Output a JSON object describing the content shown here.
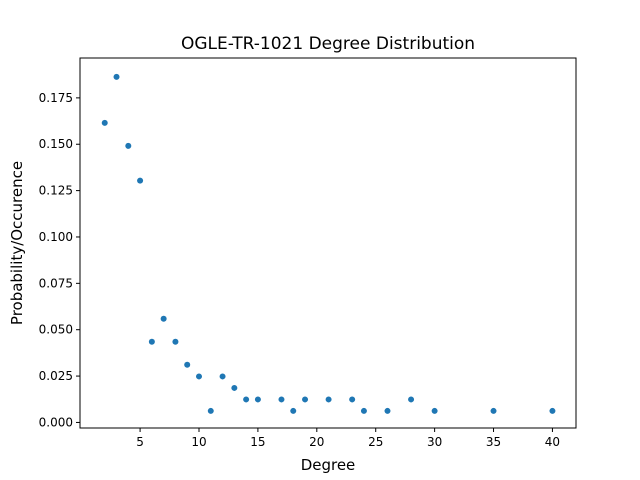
{
  "chart_data": {
    "type": "scatter",
    "title": "OGLE-TR-1021 Degree Distribution",
    "xlabel": "Degree",
    "ylabel": "Probability/Occurence",
    "xlim": [
      -0.1,
      42.0
    ],
    "ylim": [
      -0.003,
      0.1965
    ],
    "xticks": [
      {
        "value": 5,
        "label": "5"
      },
      {
        "value": 10,
        "label": "10"
      },
      {
        "value": 15,
        "label": "15"
      },
      {
        "value": 20,
        "label": "20"
      },
      {
        "value": 25,
        "label": "25"
      },
      {
        "value": 30,
        "label": "30"
      },
      {
        "value": 35,
        "label": "35"
      },
      {
        "value": 40,
        "label": "40"
      }
    ],
    "yticks": [
      {
        "value": 0.0,
        "label": "0.000"
      },
      {
        "value": 0.025,
        "label": "0.025"
      },
      {
        "value": 0.05,
        "label": "0.050"
      },
      {
        "value": 0.075,
        "label": "0.075"
      },
      {
        "value": 0.1,
        "label": "0.100"
      },
      {
        "value": 0.125,
        "label": "0.125"
      },
      {
        "value": 0.15,
        "label": "0.150"
      },
      {
        "value": 0.175,
        "label": "0.175"
      }
    ],
    "grid": false,
    "point_color": "#1f77b4",
    "points": [
      {
        "x": 2,
        "y": 0.1615
      },
      {
        "x": 3,
        "y": 0.1863
      },
      {
        "x": 4,
        "y": 0.1491
      },
      {
        "x": 5,
        "y": 0.1304
      },
      {
        "x": 6,
        "y": 0.0435
      },
      {
        "x": 7,
        "y": 0.0559
      },
      {
        "x": 8,
        "y": 0.0435
      },
      {
        "x": 9,
        "y": 0.0311
      },
      {
        "x": 10,
        "y": 0.0248
      },
      {
        "x": 11,
        "y": 0.0062
      },
      {
        "x": 12,
        "y": 0.0248
      },
      {
        "x": 13,
        "y": 0.0186
      },
      {
        "x": 14,
        "y": 0.0124
      },
      {
        "x": 15,
        "y": 0.0124
      },
      {
        "x": 17,
        "y": 0.0124
      },
      {
        "x": 18,
        "y": 0.0062
      },
      {
        "x": 19,
        "y": 0.0124
      },
      {
        "x": 21,
        "y": 0.0124
      },
      {
        "x": 23,
        "y": 0.0124
      },
      {
        "x": 24,
        "y": 0.0062
      },
      {
        "x": 26,
        "y": 0.0062
      },
      {
        "x": 28,
        "y": 0.0124
      },
      {
        "x": 30,
        "y": 0.0062
      },
      {
        "x": 35,
        "y": 0.0062
      },
      {
        "x": 40,
        "y": 0.0062
      }
    ]
  }
}
